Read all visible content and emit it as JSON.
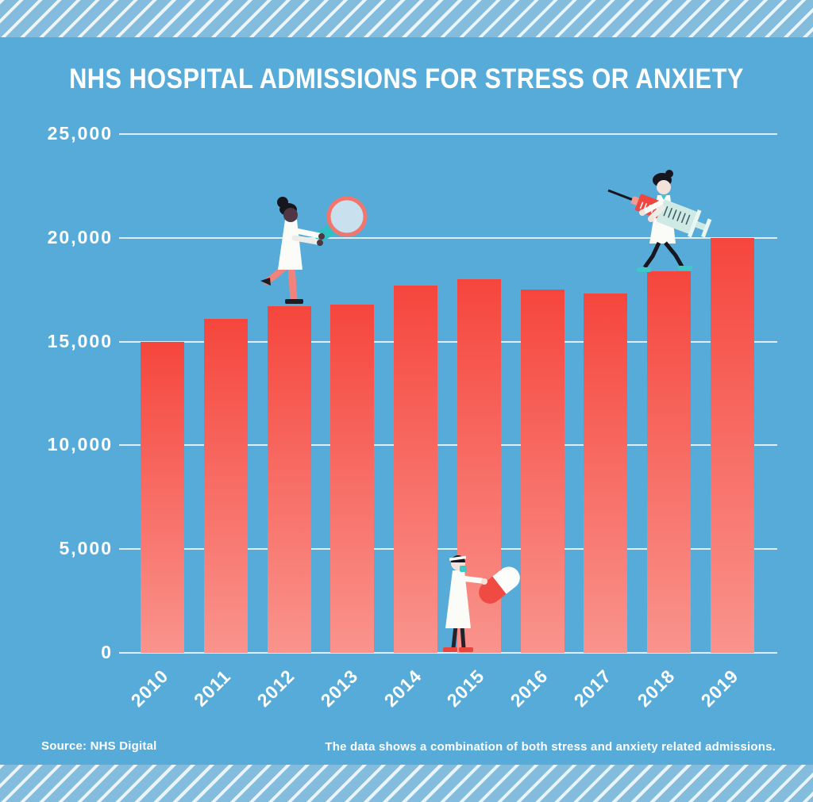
{
  "poster": {
    "title": "NHS HOSPITAL ADMISSIONS FOR STRESS OR ANXIETY",
    "source": "Source: NHS Digital",
    "footnote": "The data shows a combination of both stress and anxiety related admissions."
  },
  "colors": {
    "background": "#56abd9",
    "stripe_band_background": "#83bcdc",
    "stripe_line": "#ffffff",
    "gridline": "#e9f2f8",
    "text": "#ffffff",
    "bar_top": "#f5463d",
    "bar_bottom": "#f9948d"
  },
  "chart_data": {
    "type": "bar",
    "title": "NHS HOSPITAL ADMISSIONS FOR STRESS OR ANXIETY",
    "categories": [
      "2010",
      "2011",
      "2012",
      "2013",
      "2014",
      "2015",
      "2016",
      "2017",
      "2018",
      "2019"
    ],
    "values": [
      15000,
      16100,
      16700,
      16800,
      17700,
      18000,
      17500,
      17300,
      18400,
      20000
    ],
    "xlabel": "",
    "ylabel": "",
    "ylim": [
      0,
      25000
    ],
    "yticks": [
      0,
      5000,
      10000,
      15000,
      20000,
      25000
    ],
    "ytick_labels": [
      "0",
      "5,000",
      "10,000",
      "15,000",
      "20,000",
      "25,000"
    ],
    "grid": true,
    "legend_position": "none",
    "bar_gradient": [
      "#f5463d",
      "#f9948d"
    ]
  },
  "illustrations": [
    {
      "name": "scientist-with-magnifying-glass",
      "location": "standing on the 2012 bar"
    },
    {
      "name": "scientist-with-syringe",
      "location": "standing on the 2018 bar"
    },
    {
      "name": "scientist-with-pill",
      "location": "standing at the baseline in front of the 2015 bar"
    }
  ]
}
